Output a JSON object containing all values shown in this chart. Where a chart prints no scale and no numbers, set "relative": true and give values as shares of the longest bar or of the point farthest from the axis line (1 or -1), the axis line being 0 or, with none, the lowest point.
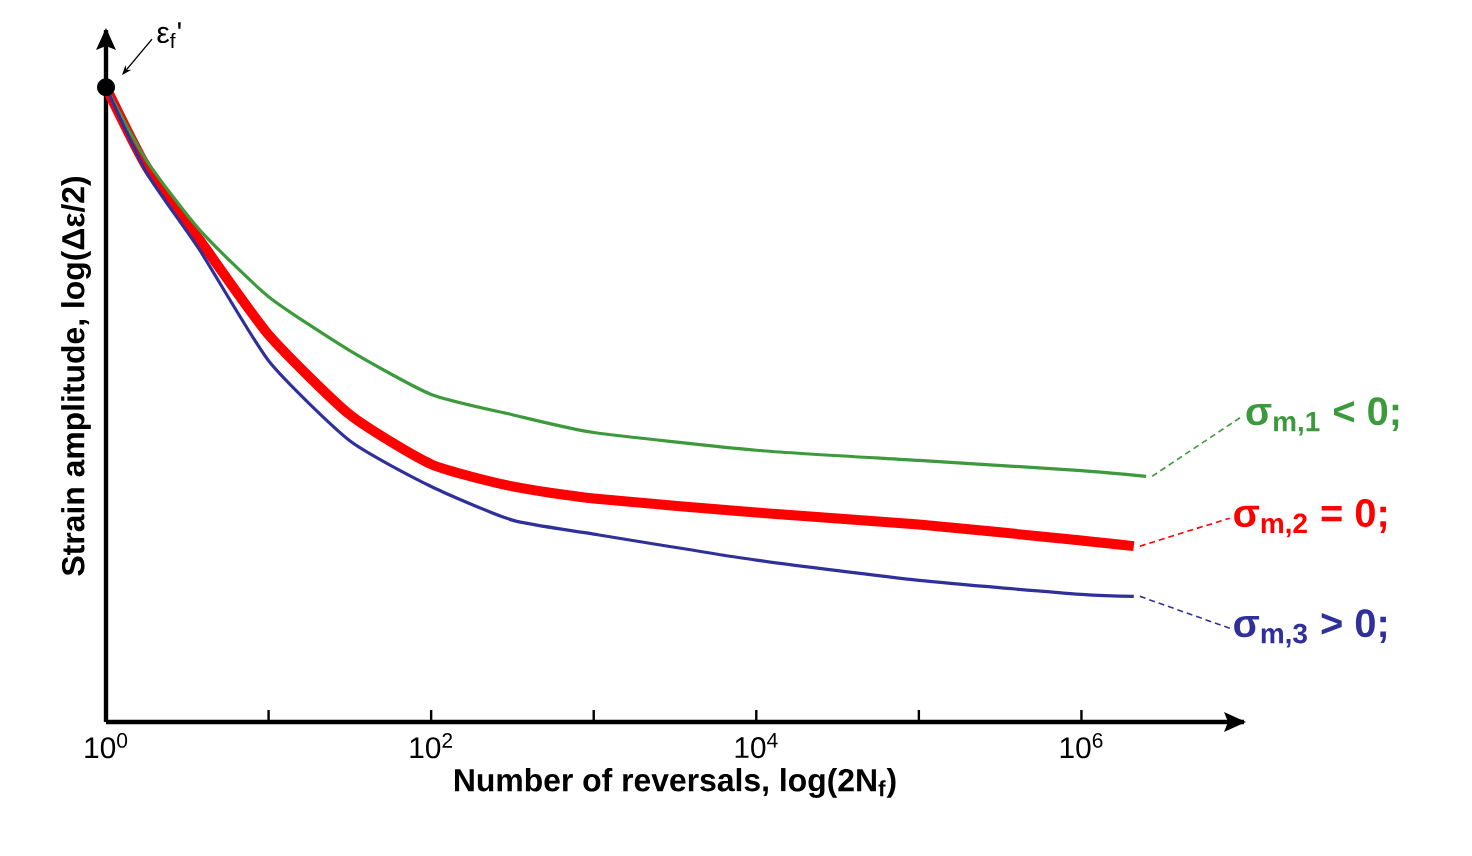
{
  "chart_data": {
    "type": "line",
    "relative": true,
    "log": "x",
    "xlabel": "Number of reversals, log(2N$_{f}$)",
    "ylabel": "Strain amplitude, log(Δε/2)",
    "xlim": [
      1,
      10000000
    ],
    "xticks": [
      {
        "value": 1,
        "label": "10$^{0}$"
      },
      {
        "value": 10,
        "label": null
      },
      {
        "value": 100,
        "label": "10$^{2}$"
      },
      {
        "value": 1000,
        "label": null
      },
      {
        "value": 10000,
        "label": "10$^{4}$"
      },
      {
        "value": 100000,
        "label": null
      },
      {
        "value": 1000000,
        "label": "10$^{6}$"
      }
    ],
    "grid": false,
    "legend": "right",
    "marker": "none",
    "line_style": "solid",
    "annotations": [
      {
        "text": "ε$_{f}$'",
        "x": 1,
        "y": 1
      }
    ],
    "series": [
      {
        "name": "σ$_{m,1}$ < 0;",
        "color": "#3c9a3c",
        "x": [
          1,
          1.78,
          3.8,
          10,
          31.6,
          100,
          316,
          1000,
          10000,
          100000,
          1000000,
          2500000
        ],
        "values": [
          1.0,
          0.884,
          0.774,
          0.67,
          0.585,
          0.516,
          0.484,
          0.456,
          0.428,
          0.412,
          0.396,
          0.387
        ]
      },
      {
        "name": "σ$_{m,2}$ = 0;",
        "color": "#ff0000",
        "x": [
          1,
          1.78,
          3.8,
          10,
          31.6,
          100,
          316,
          1000,
          10000,
          100000,
          1000000,
          2100000
        ],
        "values": [
          1.0,
          0.874,
          0.758,
          0.61,
          0.484,
          0.406,
          0.371,
          0.352,
          0.33,
          0.311,
          0.286,
          0.277
        ]
      },
      {
        "name": "σ$_{m,3}$ > 0;",
        "color": "#30309a",
        "x": [
          1,
          1.78,
          3.8,
          10,
          31.6,
          100,
          316,
          1000,
          10000,
          100000,
          1000000,
          2100000
        ],
        "values": [
          1.0,
          0.865,
          0.742,
          0.569,
          0.443,
          0.371,
          0.318,
          0.296,
          0.255,
          0.223,
          0.201,
          0.198
        ]
      }
    ]
  }
}
